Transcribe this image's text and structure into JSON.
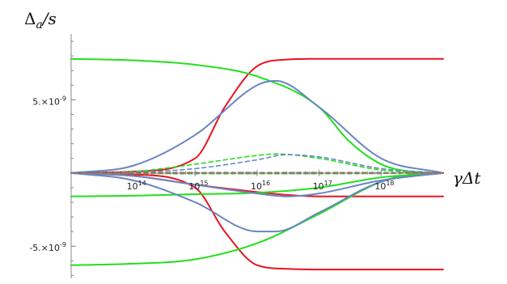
{
  "chart_data": {
    "type": "line",
    "ylabel": "Δa/s",
    "xlabel": "γΔt",
    "x_scale": "log",
    "x_ticks": [
      {
        "value": 100000000000000.0,
        "base": "10",
        "exp": "14"
      },
      {
        "value": 1000000000000000.0,
        "base": "10",
        "exp": "15"
      },
      {
        "value": 1e+16,
        "base": "10",
        "exp": "16"
      },
      {
        "value": 1e+17,
        "base": "10",
        "exp": "17"
      },
      {
        "value": 1e+18,
        "base": "10",
        "exp": "18"
      }
    ],
    "y_ticks": [
      {
        "value": 5e-09,
        "mant": "5.×10",
        "exp": "-9"
      },
      {
        "value": -5e-09,
        "mant": "-5.×10",
        "exp": "-9"
      }
    ],
    "xlim": [
      10000000000000.0,
      1e+19
    ],
    "ylim": [
      -7.2e-09,
      9.5e-09
    ],
    "colors": {
      "red": "#e8141e",
      "green": "#22e019",
      "blue": "#6a85c2"
    },
    "series": [
      {
        "color": "red",
        "dash": false,
        "points": [
          [
            10000000000000.0,
            0
          ],
          [
            100000000000000.0,
            1e-10
          ],
          [
            1000000000000000.0,
            1e-09
          ],
          [
            3000000000000000.0,
            4.5e-09
          ],
          [
            1e+16,
            7.3e-09
          ],
          [
            3e+16,
            7.75e-09
          ],
          [
            1e+17,
            7.8e-09
          ],
          [
            1e+19,
            7.8e-09
          ]
        ]
      },
      {
        "color": "red",
        "dash": false,
        "points": [
          [
            10000000000000.0,
            0
          ],
          [
            100000000000000.0,
            -1e-10
          ],
          [
            1000000000000000.0,
            -1e-09
          ],
          [
            3000000000000000.0,
            -4e-09
          ],
          [
            1e+16,
            -6.3e-09
          ],
          [
            3e+16,
            -6.55e-09
          ],
          [
            1e+17,
            -6.6e-09
          ],
          [
            1e+19,
            -6.6e-09
          ]
        ]
      },
      {
        "color": "red",
        "dash": false,
        "points": [
          [
            10000000000000.0,
            0
          ],
          [
            100000000000000.0,
            -2e-10
          ],
          [
            1000000000000000.0,
            -8e-10
          ],
          [
            1e+16,
            -1.3e-09
          ],
          [
            3e+16,
            -1.5e-09
          ],
          [
            1e+17,
            -1.6e-09
          ],
          [
            1e+19,
            -1.6e-09
          ]
        ]
      },
      {
        "color": "green",
        "dash": false,
        "points": [
          [
            10000000000000.0,
            7.8e-09
          ],
          [
            100000000000000.0,
            7.7e-09
          ],
          [
            1000000000000000.0,
            7.4e-09
          ],
          [
            1e+16,
            6.6e-09
          ],
          [
            1e+17,
            4.5e-09
          ],
          [
            3e+17,
            2.2e-09
          ],
          [
            1e+18,
            6e-10
          ],
          [
            3e+18,
            1e-10
          ],
          [
            1e+19,
            0
          ]
        ]
      },
      {
        "color": "green",
        "dash": false,
        "points": [
          [
            10000000000000.0,
            -6.3e-09
          ],
          [
            100000000000000.0,
            -6.2e-09
          ],
          [
            1000000000000000.0,
            -5.9e-09
          ],
          [
            1e+16,
            -4.8e-09
          ],
          [
            1e+17,
            -2.8e-09
          ],
          [
            1e+18,
            -6e-10
          ],
          [
            3e+18,
            -1e-10
          ],
          [
            1e+19,
            0
          ]
        ]
      },
      {
        "color": "green",
        "dash": false,
        "points": [
          [
            10000000000000.0,
            -1.6e-09
          ],
          [
            100000000000000.0,
            -1.55e-09
          ],
          [
            1000000000000000.0,
            -1.45e-09
          ],
          [
            1e+16,
            -1.35e-09
          ],
          [
            1e+17,
            -1e-09
          ],
          [
            1e+18,
            -3e-10
          ],
          [
            1e+19,
            0
          ]
        ]
      },
      {
        "color": "blue",
        "dash": false,
        "points": [
          [
            10000000000000.0,
            0
          ],
          [
            100000000000000.0,
            5e-10
          ],
          [
            1000000000000000.0,
            2.6e-09
          ],
          [
            1e+16,
            6e-09
          ],
          [
            2e+16,
            6.3e-09
          ],
          [
            1e+17,
            4.5e-09
          ],
          [
            1e+18,
            1e-09
          ],
          [
            1e+19,
            0
          ]
        ]
      },
      {
        "color": "blue",
        "dash": false,
        "points": [
          [
            10000000000000.0,
            0
          ],
          [
            100000000000000.0,
            -5e-10
          ],
          [
            1000000000000000.0,
            -2e-09
          ],
          [
            1e+16,
            -4e-09
          ],
          [
            2e+16,
            -4e-09
          ],
          [
            1e+17,
            -2.7e-09
          ],
          [
            1e+18,
            -6e-10
          ],
          [
            1e+19,
            0
          ]
        ]
      },
      {
        "color": "blue",
        "dash": false,
        "points": [
          [
            10000000000000.0,
            0
          ],
          [
            100000000000000.0,
            -2e-10
          ],
          [
            1000000000000000.0,
            -8e-10
          ],
          [
            1e+16,
            -1.4e-09
          ],
          [
            3e+16,
            -1.6e-09
          ],
          [
            1e+17,
            -1.4e-09
          ],
          [
            1e+18,
            -5e-10
          ],
          [
            1e+19,
            0
          ]
        ]
      },
      {
        "color": "green",
        "dash": true,
        "points": [
          [
            10000000000000.0,
            0
          ],
          [
            100000000000000.0,
            1e-10
          ],
          [
            1000000000000000.0,
            6e-10
          ],
          [
            1e+16,
            1.2e-09
          ],
          [
            2e+16,
            1.3e-09
          ],
          [
            1e+17,
            1e-09
          ],
          [
            1e+18,
            2e-10
          ],
          [
            1e+19,
            0
          ]
        ]
      },
      {
        "color": "blue",
        "dash": true,
        "points": [
          [
            10000000000000.0,
            0
          ],
          [
            100000000000000.0,
            5e-11
          ],
          [
            1000000000000000.0,
            3e-10
          ],
          [
            1e+16,
            9e-10
          ],
          [
            3e+16,
            1.25e-09
          ],
          [
            1e+17,
            1.1e-09
          ],
          [
            1e+18,
            3e-10
          ],
          [
            1e+19,
            0
          ]
        ]
      },
      {
        "color": "green",
        "dash": true,
        "points": [
          [
            10000000000000.0,
            0
          ],
          [
            1000000000000000.0,
            -5e-11
          ],
          [
            1e+17,
            -5e-11
          ],
          [
            1e+19,
            0
          ]
        ]
      },
      {
        "color": "blue",
        "dash": true,
        "points": [
          [
            10000000000000.0,
            0
          ],
          [
            1000000000000000.0,
            3e-11
          ],
          [
            1e+17,
            3e-11
          ],
          [
            1e+19,
            0
          ]
        ]
      },
      {
        "color": "red",
        "dash": true,
        "points": [
          [
            10000000000000.0,
            0
          ],
          [
            1e+19,
            0
          ]
        ]
      }
    ]
  }
}
